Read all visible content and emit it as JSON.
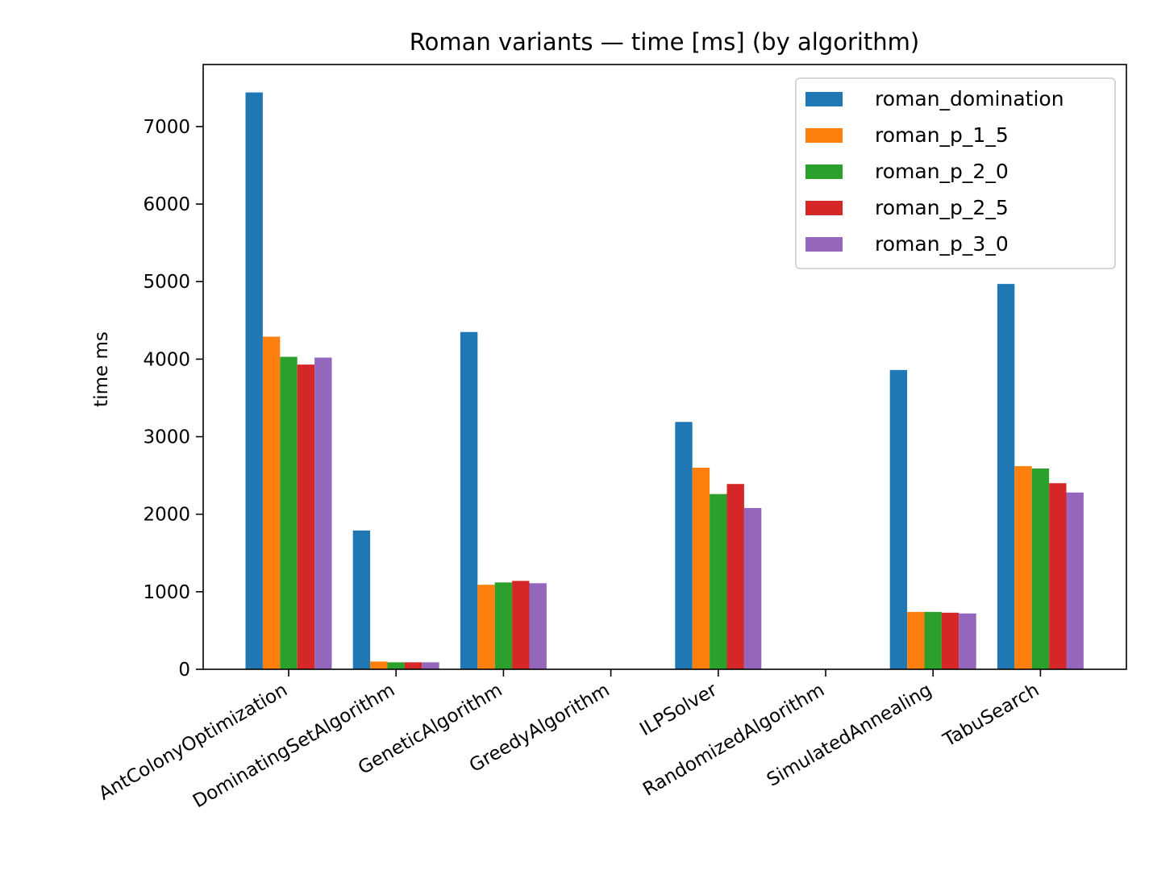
{
  "chart_data": {
    "type": "bar",
    "title": "Roman variants — time [ms] (by algorithm)",
    "xlabel": "",
    "ylabel": "time ms",
    "ylim": [
      0,
      7800
    ],
    "yticks": [
      0,
      1000,
      2000,
      3000,
      4000,
      5000,
      6000,
      7000
    ],
    "grid": false,
    "legend_position": "top-right",
    "categories": [
      "AntColonyOptimization",
      "DominatingSetAlgorithm",
      "GeneticAlgorithm",
      "GreedyAlgorithm",
      "ILPSolver",
      "RandomizedAlgorithm",
      "SimulatedAnnealing",
      "TabuSearch"
    ],
    "series": [
      {
        "name": "roman_domination",
        "color": "#1f77b4",
        "values": [
          7440,
          1790,
          4350,
          0,
          3190,
          0,
          3860,
          4970
        ]
      },
      {
        "name": "roman_p_1_5",
        "color": "#ff7f0e",
        "values": [
          4290,
          100,
          1090,
          0,
          2600,
          0,
          740,
          2620
        ]
      },
      {
        "name": "roman_p_2_0",
        "color": "#2ca02c",
        "values": [
          4030,
          90,
          1120,
          0,
          2260,
          0,
          740,
          2590
        ]
      },
      {
        "name": "roman_p_2_5",
        "color": "#d62728",
        "values": [
          3930,
          90,
          1140,
          0,
          2390,
          0,
          730,
          2400
        ]
      },
      {
        "name": "roman_p_3_0",
        "color": "#9467bd",
        "values": [
          4020,
          90,
          1110,
          0,
          2080,
          0,
          720,
          2280
        ]
      }
    ]
  }
}
